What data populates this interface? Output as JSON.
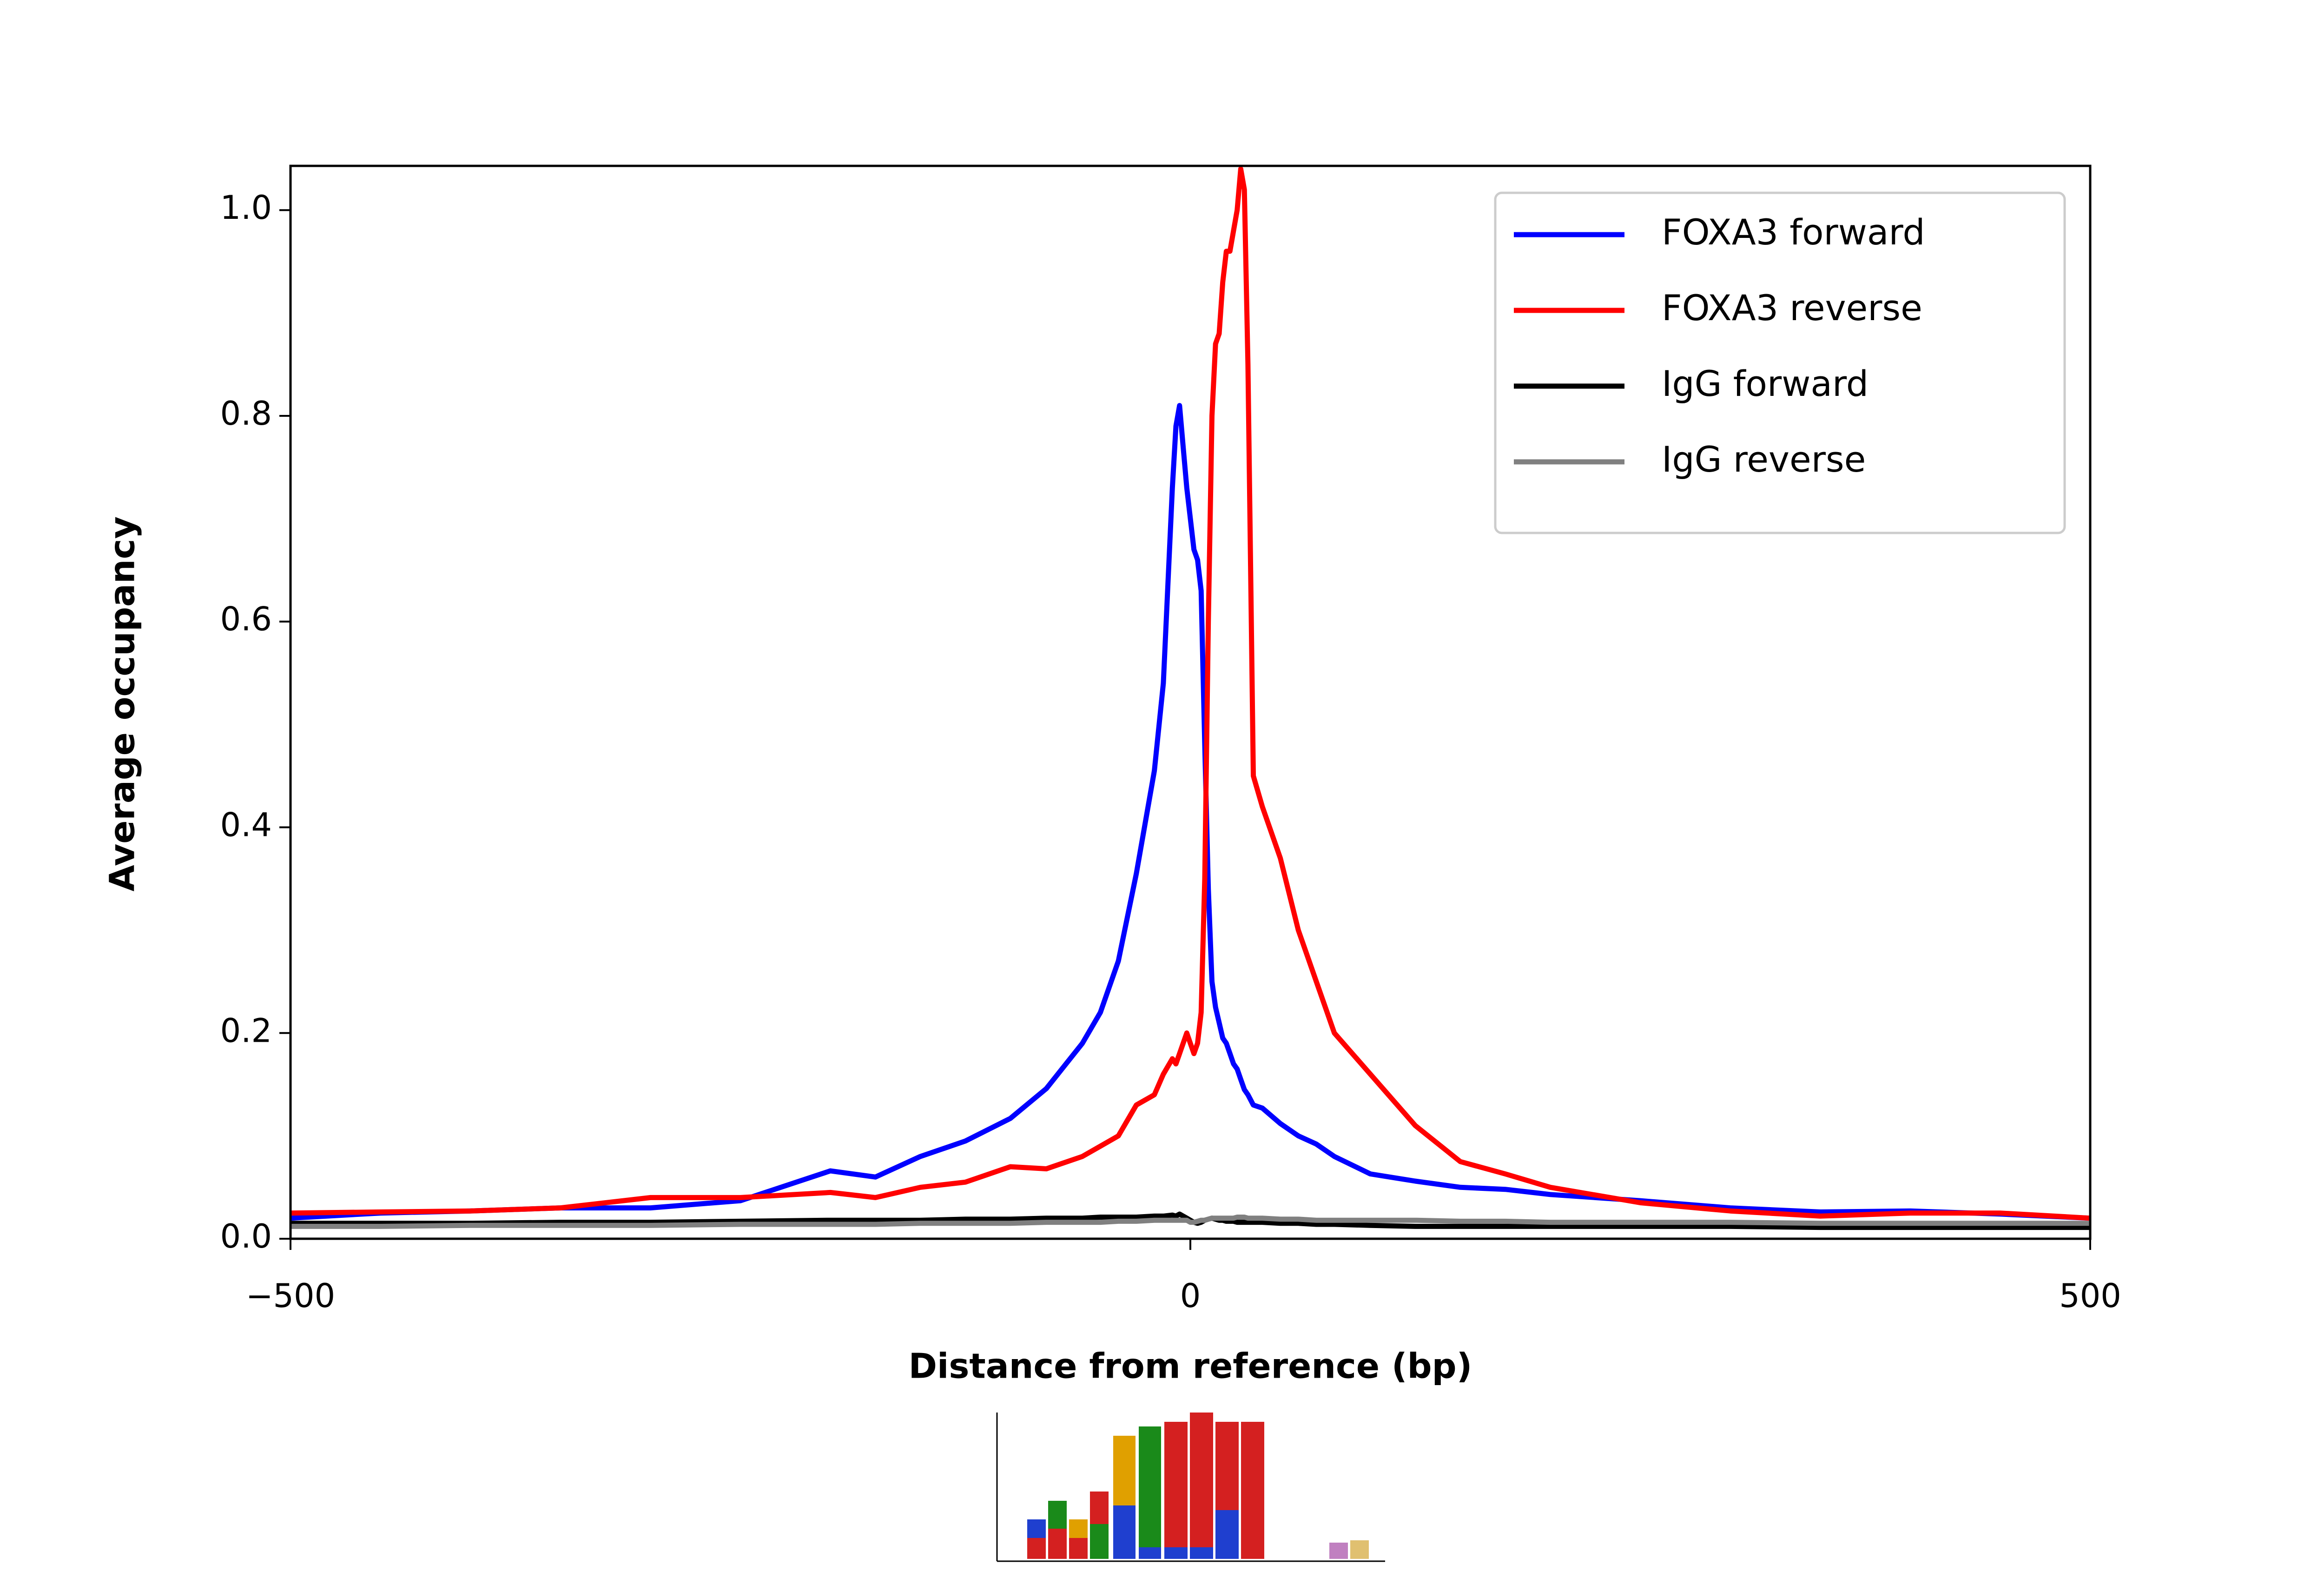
{
  "chart_data": {
    "type": "line",
    "xlabel": "Distance from reference (bp)",
    "ylabel": "Average occupancy",
    "x": [
      -500,
      -450,
      -400,
      -350,
      -300,
      -250,
      -200,
      -175,
      -150,
      -125,
      -100,
      -80,
      -60,
      -50,
      -40,
      -30,
      -20,
      -15,
      -10,
      -8,
      -6,
      -4,
      -2,
      0,
      2,
      4,
      6,
      8,
      10,
      12,
      14,
      16,
      18,
      20,
      22,
      24,
      26,
      28,
      30,
      32,
      35,
      40,
      50,
      60,
      70,
      80,
      100,
      125,
      150,
      175,
      200,
      250,
      300,
      350,
      400,
      450,
      500
    ],
    "series": [
      {
        "name": "FOXA3 forward",
        "color": "#0000ff",
        "values": [
          0.02,
          0.025,
          0.027,
          0.03,
          0.03,
          0.037,
          0.066,
          0.06,
          0.08,
          0.095,
          0.117,
          0.146,
          0.19,
          0.22,
          0.27,
          0.355,
          0.455,
          0.54,
          0.73,
          0.79,
          0.81,
          0.77,
          0.73,
          0.7,
          0.67,
          0.66,
          0.63,
          0.48,
          0.34,
          0.25,
          0.225,
          0.21,
          0.195,
          0.19,
          0.18,
          0.17,
          0.165,
          0.155,
          0.145,
          0.14,
          0.13,
          0.127,
          0.112,
          0.1,
          0.092,
          0.08,
          0.063,
          0.056,
          0.05,
          0.048,
          0.043,
          0.037,
          0.03,
          0.026,
          0.027,
          0.024,
          0.02
        ]
      },
      {
        "name": "FOXA3 reverse",
        "color": "#ff0000",
        "values": [
          0.025,
          0.026,
          0.027,
          0.03,
          0.04,
          0.04,
          0.045,
          0.04,
          0.05,
          0.055,
          0.07,
          0.068,
          0.08,
          0.09,
          0.1,
          0.13,
          0.14,
          0.16,
          0.175,
          0.17,
          0.18,
          0.19,
          0.2,
          0.19,
          0.18,
          0.19,
          0.22,
          0.35,
          0.6,
          0.8,
          0.87,
          0.88,
          0.93,
          0.96,
          0.96,
          0.98,
          1.0,
          1.04,
          1.02,
          0.85,
          0.45,
          0.42,
          0.37,
          0.3,
          0.25,
          0.2,
          0.16,
          0.11,
          0.075,
          0.063,
          0.05,
          0.035,
          0.027,
          0.022,
          0.025,
          0.025,
          0.02
        ]
      },
      {
        "name": "IgG forward",
        "color": "#000000",
        "values": [
          0.015,
          0.015,
          0.015,
          0.016,
          0.016,
          0.017,
          0.018,
          0.018,
          0.018,
          0.019,
          0.019,
          0.02,
          0.02,
          0.021,
          0.021,
          0.021,
          0.022,
          0.022,
          0.023,
          0.022,
          0.024,
          0.022,
          0.02,
          0.018,
          0.016,
          0.015,
          0.016,
          0.018,
          0.019,
          0.02,
          0.019,
          0.018,
          0.018,
          0.017,
          0.017,
          0.017,
          0.016,
          0.016,
          0.016,
          0.016,
          0.016,
          0.016,
          0.015,
          0.015,
          0.014,
          0.014,
          0.013,
          0.012,
          0.012,
          0.012,
          0.012,
          0.012,
          0.012,
          0.011,
          0.011,
          0.011,
          0.011
        ]
      },
      {
        "name": "IgG reverse",
        "color": "#808080",
        "values": [
          0.012,
          0.012,
          0.013,
          0.013,
          0.013,
          0.014,
          0.014,
          0.014,
          0.015,
          0.015,
          0.015,
          0.016,
          0.016,
          0.016,
          0.017,
          0.017,
          0.018,
          0.018,
          0.018,
          0.018,
          0.018,
          0.018,
          0.018,
          0.016,
          0.016,
          0.017,
          0.018,
          0.018,
          0.019,
          0.02,
          0.02,
          0.02,
          0.02,
          0.02,
          0.02,
          0.02,
          0.021,
          0.021,
          0.021,
          0.02,
          0.02,
          0.02,
          0.019,
          0.019,
          0.018,
          0.018,
          0.018,
          0.018,
          0.017,
          0.017,
          0.016,
          0.016,
          0.016,
          0.015,
          0.015,
          0.015,
          0.015
        ]
      }
    ],
    "xlim": [
      -500,
      500
    ],
    "ylim": [
      0,
      1.043
    ],
    "xticks": [
      {
        "value": -500,
        "label": "−500"
      },
      0,
      500
    ],
    "yticks": [
      {
        "value": 0,
        "label": "0.0"
      },
      0.2,
      0.4,
      0.6,
      0.8,
      {
        "value": 1.0,
        "label": "1.0"
      }
    ],
    "legend": "upper right",
    "grid": false
  }
}
